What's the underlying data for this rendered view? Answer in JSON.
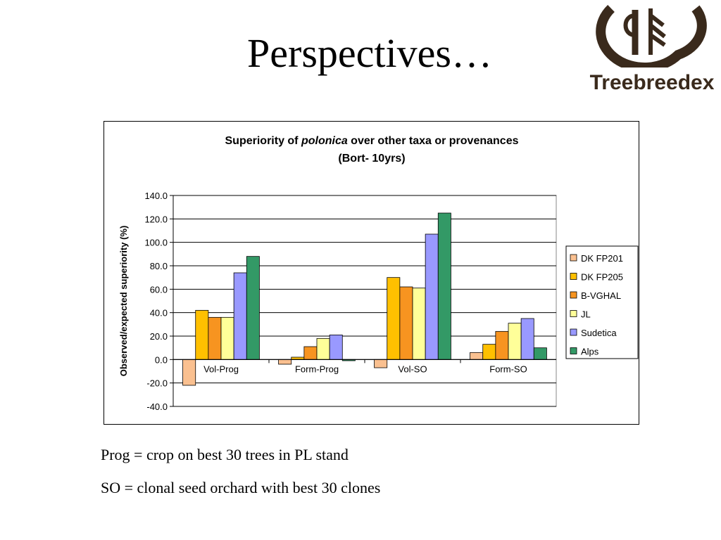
{
  "slide": {
    "title": "Perspectives…",
    "logo_text": "Treebreedex",
    "notes": [
      "Prog = crop on best 30 trees in PL stand",
      "SO = clonal seed orchard with best 30 clones"
    ]
  },
  "chart_data": {
    "type": "bar",
    "title_prefix": "Superiority of ",
    "title_italic": "polonica",
    "title_suffix": " over other taxa or provenances",
    "subtitle": "(Bort- 10yrs)",
    "xlabel": "",
    "ylabel": "Observed/expected superiority (%)",
    "ylim": [
      -40,
      140
    ],
    "yticks": [
      "140.0",
      "120.0",
      "100.0",
      "80.0",
      "60.0",
      "40.0",
      "20.0",
      "0.0",
      "-20.0",
      "-40.0"
    ],
    "grid": true,
    "legend_position": "right",
    "categories": [
      "Vol-Prog",
      "Form-Prog",
      "Vol-SO",
      "Form-SO"
    ],
    "series": [
      {
        "name": "DK FP201",
        "color": "#FAC090",
        "values": [
          -22,
          -4,
          -7,
          6
        ]
      },
      {
        "name": "DK FP205",
        "color": "#FFC000",
        "values": [
          42,
          2,
          70,
          13
        ]
      },
      {
        "name": "B-VGHAL",
        "color": "#F79420",
        "values": [
          36,
          11,
          62,
          24
        ]
      },
      {
        "name": "JL",
        "color": "#FFFF99",
        "values": [
          36,
          18,
          61,
          31
        ]
      },
      {
        "name": "Sudetica",
        "color": "#9999FF",
        "values": [
          74,
          21,
          107,
          35
        ]
      },
      {
        "name": "Alps",
        "color": "#339966",
        "values": [
          88,
          -1,
          125,
          10
        ]
      }
    ]
  }
}
